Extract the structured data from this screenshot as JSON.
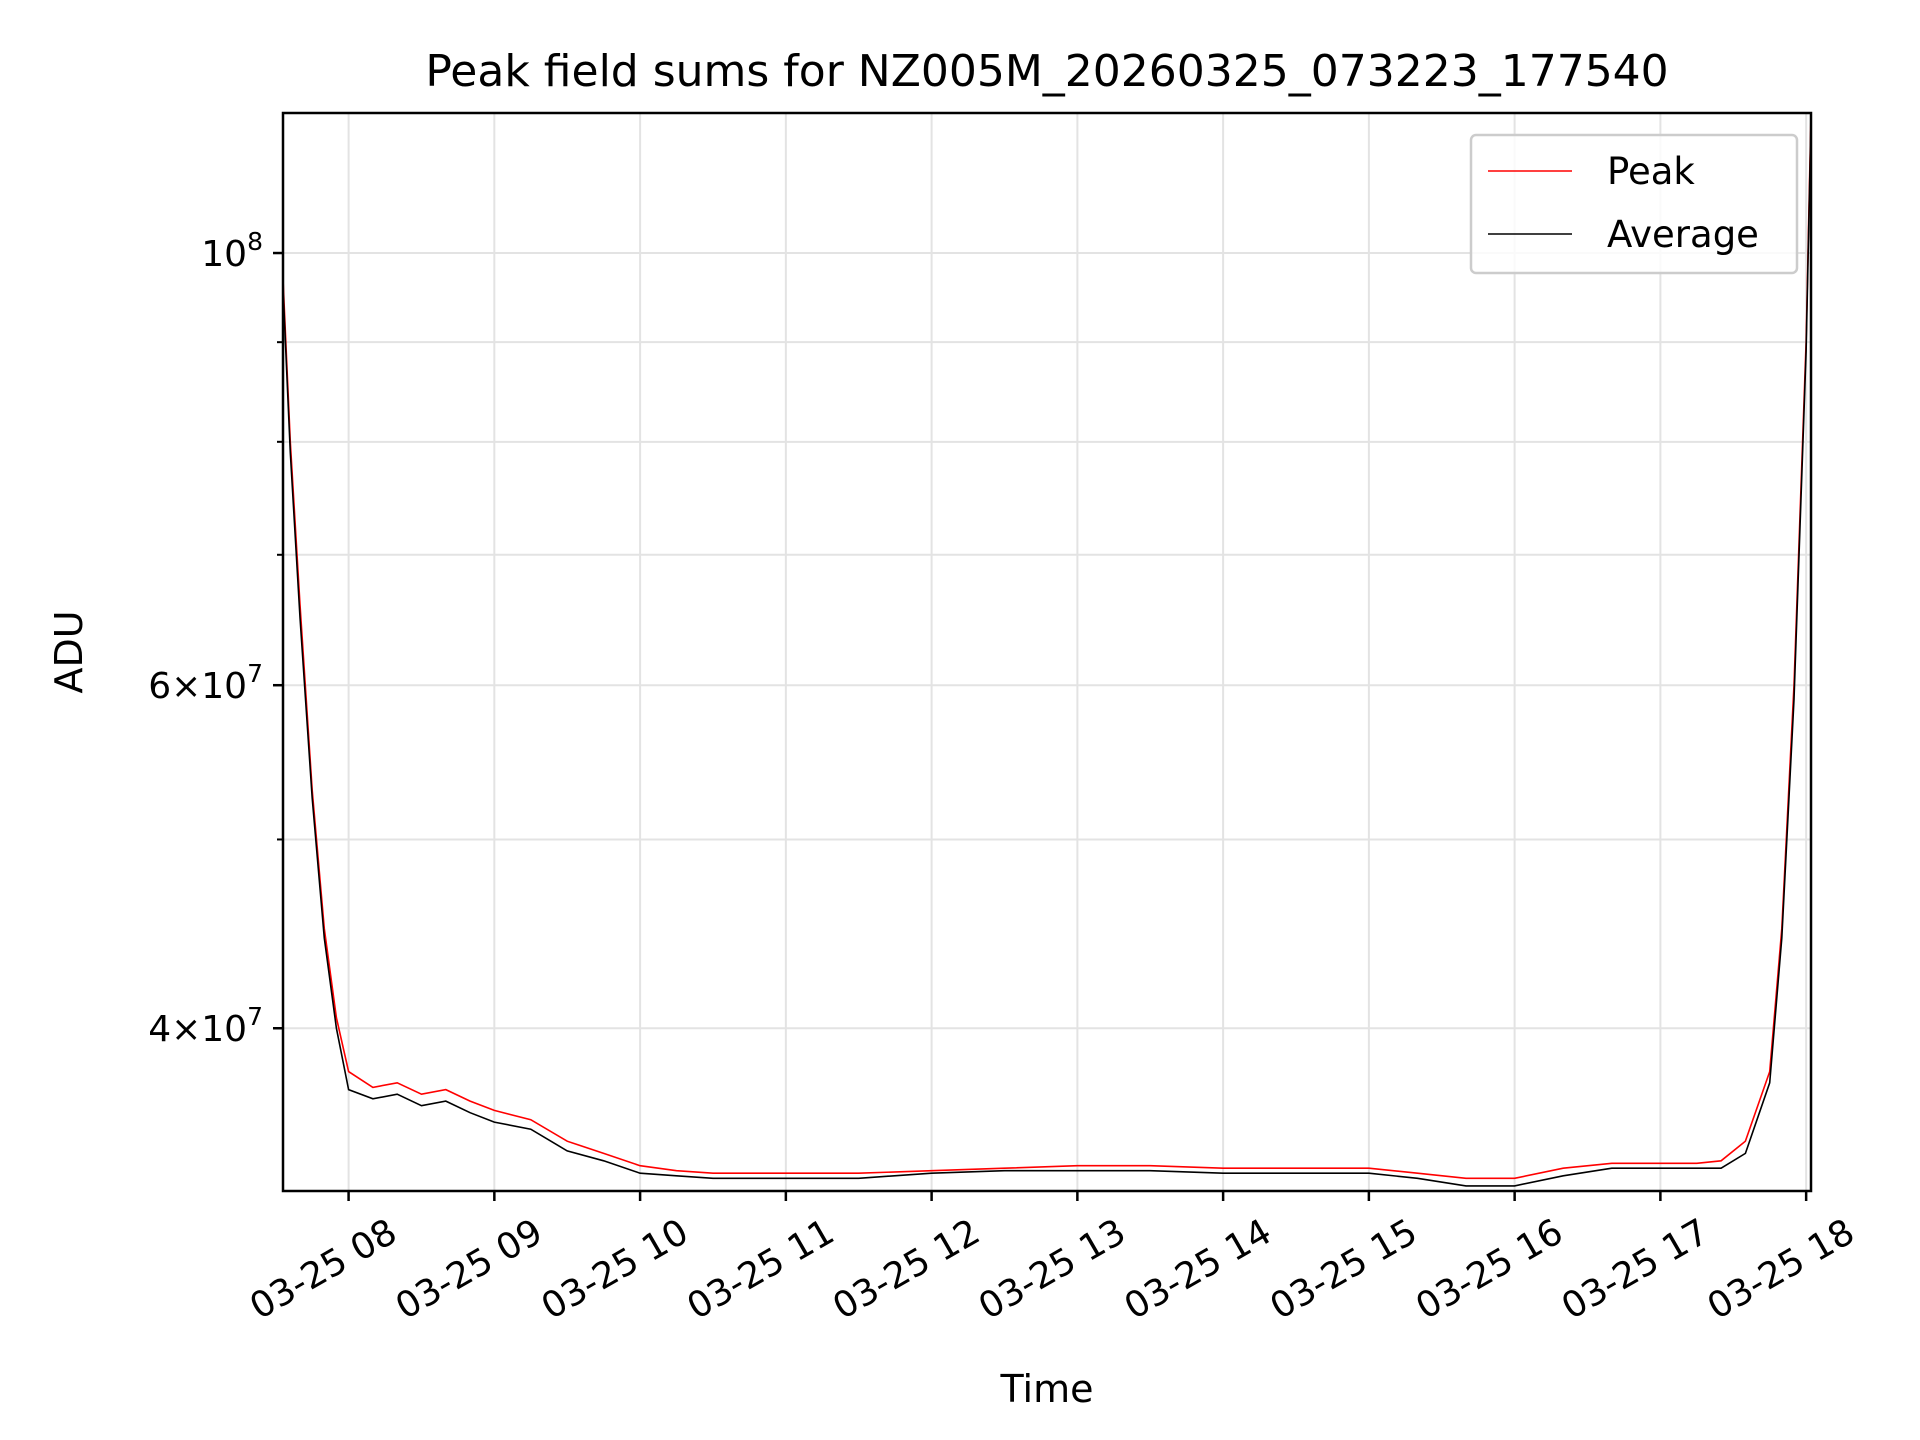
{
  "chart_data": {
    "type": "line",
    "title": "Peak field sums for NZ005M_20260325_073223_177540",
    "xlabel": "Time",
    "ylabel": "ADU",
    "y_scale": "log",
    "xlim": [
      "2026-03-25 07:33",
      "2026-03-25 18:02"
    ],
    "ylim": [
      33000000,
      118000000
    ],
    "x_ticks": [
      {
        "value": "2026-03-25 08:00",
        "label": "03-25 08"
      },
      {
        "value": "2026-03-25 09:00",
        "label": "03-25 09"
      },
      {
        "value": "2026-03-25 10:00",
        "label": "03-25 10"
      },
      {
        "value": "2026-03-25 11:00",
        "label": "03-25 11"
      },
      {
        "value": "2026-03-25 12:00",
        "label": "03-25 12"
      },
      {
        "value": "2026-03-25 13:00",
        "label": "03-25 13"
      },
      {
        "value": "2026-03-25 14:00",
        "label": "03-25 14"
      },
      {
        "value": "2026-03-25 15:00",
        "label": "03-25 15"
      },
      {
        "value": "2026-03-25 16:00",
        "label": "03-25 16"
      },
      {
        "value": "2026-03-25 17:00",
        "label": "03-25 17"
      },
      {
        "value": "2026-03-25 18:00",
        "label": "03-25 18"
      }
    ],
    "y_major_ticks": [
      {
        "value": 40000000,
        "base": "4",
        "exp": "7"
      },
      {
        "value": 60000000,
        "base": "6",
        "exp": "7"
      },
      {
        "value": 100000000,
        "base": "",
        "exp": "8"
      }
    ],
    "y_minor_ticks": [
      50000000,
      70000000,
      80000000,
      90000000
    ],
    "grid": true,
    "legend_position": "top-right",
    "series": [
      {
        "name": "Peak",
        "color": "#ff0000",
        "x": [
          "2026-03-25 07:33",
          "2026-03-25 07:36",
          "2026-03-25 07:40",
          "2026-03-25 07:45",
          "2026-03-25 07:50",
          "2026-03-25 07:55",
          "2026-03-25 08:00",
          "2026-03-25 08:10",
          "2026-03-25 08:20",
          "2026-03-25 08:30",
          "2026-03-25 08:40",
          "2026-03-25 08:50",
          "2026-03-25 09:00",
          "2026-03-25 09:15",
          "2026-03-25 09:30",
          "2026-03-25 09:45",
          "2026-03-25 10:00",
          "2026-03-25 10:15",
          "2026-03-25 10:30",
          "2026-03-25 11:00",
          "2026-03-25 11:30",
          "2026-03-25 12:00",
          "2026-03-25 12:30",
          "2026-03-25 13:00",
          "2026-03-25 13:30",
          "2026-03-25 14:00",
          "2026-03-25 14:30",
          "2026-03-25 15:00",
          "2026-03-25 15:20",
          "2026-03-25 15:40",
          "2026-03-25 16:00",
          "2026-03-25 16:20",
          "2026-03-25 16:40",
          "2026-03-25 17:00",
          "2026-03-25 17:15",
          "2026-03-25 17:25",
          "2026-03-25 17:35",
          "2026-03-25 17:45",
          "2026-03-25 17:50",
          "2026-03-25 17:55",
          "2026-03-25 18:00",
          "2026-03-25 18:02"
        ],
        "values": [
          97000000,
          80000000,
          66000000,
          53000000,
          45000000,
          40500000,
          38000000,
          37300000,
          37500000,
          37000000,
          37200000,
          36700000,
          36300000,
          35900000,
          35000000,
          34500000,
          34000000,
          33800000,
          33700000,
          33700000,
          33700000,
          33800000,
          33900000,
          34000000,
          34000000,
          33900000,
          33900000,
          33900000,
          33700000,
          33500000,
          33500000,
          33900000,
          34100000,
          34100000,
          34100000,
          34200000,
          35000000,
          38000000,
          45000000,
          60000000,
          90000000,
          118000000
        ]
      },
      {
        "name": "Average",
        "color": "#000000",
        "x": [
          "2026-03-25 07:33",
          "2026-03-25 07:36",
          "2026-03-25 07:40",
          "2026-03-25 07:45",
          "2026-03-25 07:50",
          "2026-03-25 07:55",
          "2026-03-25 08:00",
          "2026-03-25 08:10",
          "2026-03-25 08:20",
          "2026-03-25 08:30",
          "2026-03-25 08:40",
          "2026-03-25 08:50",
          "2026-03-25 09:00",
          "2026-03-25 09:15",
          "2026-03-25 09:30",
          "2026-03-25 09:45",
          "2026-03-25 10:00",
          "2026-03-25 10:15",
          "2026-03-25 10:30",
          "2026-03-25 11:00",
          "2026-03-25 11:30",
          "2026-03-25 12:00",
          "2026-03-25 12:30",
          "2026-03-25 13:00",
          "2026-03-25 13:30",
          "2026-03-25 14:00",
          "2026-03-25 14:30",
          "2026-03-25 15:00",
          "2026-03-25 15:20",
          "2026-03-25 15:40",
          "2026-03-25 16:00",
          "2026-03-25 16:20",
          "2026-03-25 16:40",
          "2026-03-25 17:00",
          "2026-03-25 17:15",
          "2026-03-25 17:25",
          "2026-03-25 17:35",
          "2026-03-25 17:45",
          "2026-03-25 17:50",
          "2026-03-25 17:55",
          "2026-03-25 18:00",
          "2026-03-25 18:02"
        ],
        "values": [
          96000000,
          79000000,
          65000000,
          52500000,
          44500000,
          40000000,
          37200000,
          36800000,
          37000000,
          36500000,
          36700000,
          36200000,
          35800000,
          35500000,
          34600000,
          34200000,
          33700000,
          33600000,
          33500000,
          33500000,
          33500000,
          33700000,
          33800000,
          33800000,
          33800000,
          33700000,
          33700000,
          33700000,
          33500000,
          33200000,
          33200000,
          33600000,
          33900000,
          33900000,
          33900000,
          33900000,
          34500000,
          37500000,
          44500000,
          59000000,
          89000000,
          117000000
        ]
      }
    ]
  }
}
